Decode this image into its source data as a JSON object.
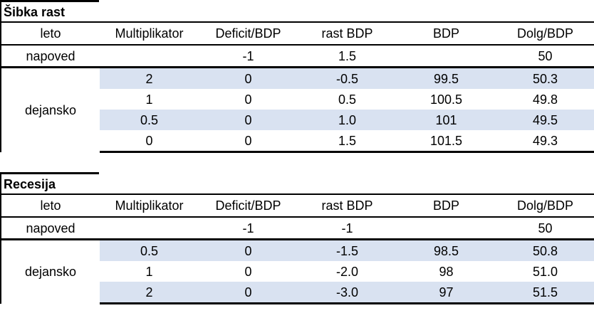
{
  "colors": {
    "shaded_row_fill": "#d9e2f1",
    "border": "#000000",
    "text": "#000000"
  },
  "tables": [
    {
      "title": "Šibka rast",
      "header": [
        "leto",
        "Multiplikator",
        "Deficit/BDP",
        "rast BDP",
        "BDP",
        "Dolg/BDP"
      ],
      "forecast": [
        "napoved",
        "",
        "-1",
        "1.5",
        "",
        "50"
      ],
      "actual_label": "dejansko",
      "actual": [
        [
          "2",
          "0",
          "-0.5",
          "99.5",
          "50.3"
        ],
        [
          "1",
          "0",
          "0.5",
          "100.5",
          "49.8"
        ],
        [
          "0.5",
          "0",
          "1.0",
          "101",
          "49.5"
        ],
        [
          "0",
          "0",
          "1.5",
          "101.5",
          "49.3"
        ]
      ]
    },
    {
      "title": "Recesija",
      "header": [
        "leto",
        "Multiplikator",
        "Deficit/BDP",
        "rast BDP",
        "BDP",
        "Dolg/BDP"
      ],
      "forecast": [
        "napoved",
        "",
        "-1",
        "-1",
        "",
        "50"
      ],
      "actual_label": "dejansko",
      "actual": [
        [
          "0.5",
          "0",
          "-1.5",
          "98.5",
          "50.8"
        ],
        [
          "1",
          "0",
          "-2.0",
          "98",
          "51.0"
        ],
        [
          "2",
          "0",
          "-3.0",
          "97",
          "51.5"
        ]
      ]
    }
  ]
}
